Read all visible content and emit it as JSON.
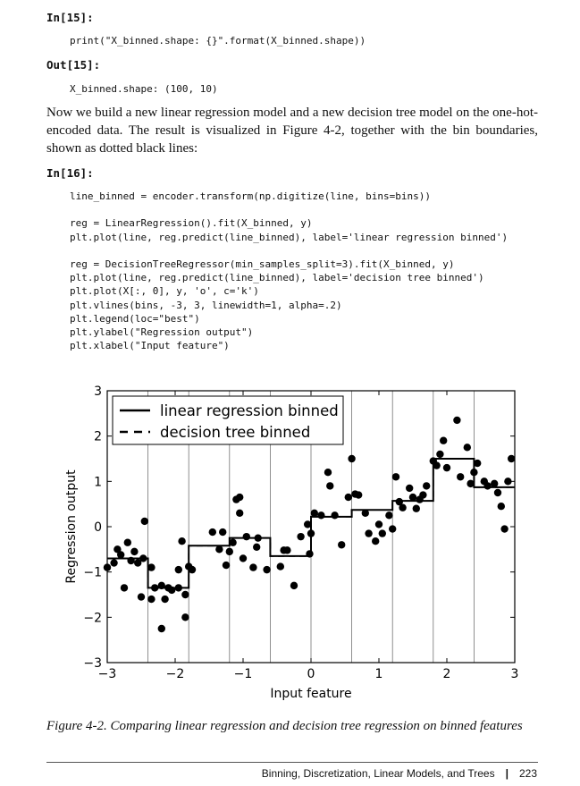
{
  "cells": {
    "in15_prompt": "In[15]:",
    "in15_code": [
      "print(\"X_binned.shape: {}\".format(X_binned.shape))"
    ],
    "out15_prompt": "Out[15]:",
    "out15_text": "X_binned.shape: (100, 10)",
    "paragraph": "Now we build a new linear regression model and a new decision tree model on the one-hot-encoded data. The result is visualized in Figure 4-2, together with the bin boundaries, shown as dotted black lines:",
    "in16_prompt": "In[16]:",
    "in16_code": [
      "line_binned = encoder.transform(np.digitize(line, bins=bins))",
      "",
      "reg = LinearRegression().fit(X_binned, y)",
      "plt.plot(line, reg.predict(line_binned), label='linear regression binned')",
      "",
      "reg = DecisionTreeRegressor(min_samples_split=3).fit(X_binned, y)",
      "plt.plot(line, reg.predict(line_binned), label='decision tree binned')",
      "plt.plot(X[:, 0], y, 'o', c='k')",
      "plt.vlines(bins, -3, 3, linewidth=1, alpha=.2)",
      "plt.legend(loc=\"best\")",
      "plt.ylabel(\"Regression output\")",
      "plt.xlabel(\"Input feature\")"
    ]
  },
  "chart_data": {
    "type": "line",
    "xlabel": "Input feature",
    "ylabel": "Regression output",
    "xlim": [
      -3,
      3
    ],
    "ylim": [
      -3,
      3
    ],
    "x_ticks": [
      -3,
      -2,
      -1,
      0,
      1,
      2,
      3
    ],
    "y_ticks": [
      -3,
      -2,
      -1,
      0,
      1,
      2,
      3
    ],
    "x_tick_labels": [
      "−3",
      "−2",
      "−1",
      "0",
      "1",
      "2",
      "3"
    ],
    "y_tick_labels": [
      "−3",
      "−2",
      "−1",
      "0",
      "1",
      "2",
      "3"
    ],
    "legend_placement": "upper-left",
    "bins": [
      -3,
      -2.4,
      -1.8,
      -1.2,
      -0.6,
      0,
      0.6,
      1.2,
      1.8,
      2.4,
      3
    ],
    "series": [
      {
        "name": "linear regression binned",
        "style": "solid",
        "step_values": [
          -0.7,
          -1.35,
          -0.42,
          -0.25,
          -0.65,
          0.22,
          0.37,
          0.57,
          1.5,
          0.87
        ]
      },
      {
        "name": "decision tree binned",
        "style": "dashed",
        "step_values": [
          -0.7,
          -1.35,
          -0.42,
          -0.25,
          -0.65,
          0.22,
          0.37,
          0.57,
          1.5,
          0.87
        ]
      }
    ],
    "points": [
      [
        -3.0,
        -0.9
      ],
      [
        -2.9,
        -0.8
      ],
      [
        -2.85,
        -0.5
      ],
      [
        -2.8,
        -0.62
      ],
      [
        -2.75,
        -1.35
      ],
      [
        -2.7,
        -0.35
      ],
      [
        -2.65,
        -0.75
      ],
      [
        -2.6,
        -0.55
      ],
      [
        -2.55,
        -0.8
      ],
      [
        -2.45,
        0.12
      ],
      [
        -2.47,
        -0.7
      ],
      [
        -2.5,
        -1.55
      ],
      [
        -2.35,
        -0.9
      ],
      [
        -2.35,
        -1.6
      ],
      [
        -2.3,
        -1.35
      ],
      [
        -2.2,
        -1.3
      ],
      [
        -2.15,
        -1.6
      ],
      [
        -2.1,
        -1.35
      ],
      [
        -2.05,
        -1.4
      ],
      [
        -2.2,
        -2.25
      ],
      [
        -1.95,
        -1.35
      ],
      [
        -1.95,
        -0.95
      ],
      [
        -1.9,
        -0.32
      ],
      [
        -1.85,
        -1.5
      ],
      [
        -1.85,
        -2.0
      ],
      [
        -1.8,
        -0.88
      ],
      [
        -1.75,
        -0.95
      ],
      [
        -1.45,
        -0.12
      ],
      [
        -1.35,
        -0.5
      ],
      [
        -1.3,
        -0.12
      ],
      [
        -1.25,
        -0.85
      ],
      [
        -1.2,
        -0.55
      ],
      [
        -1.15,
        -0.35
      ],
      [
        -1.1,
        0.6
      ],
      [
        -1.05,
        0.65
      ],
      [
        -1.05,
        0.3
      ],
      [
        -1.0,
        -0.7
      ],
      [
        -0.95,
        -0.22
      ],
      [
        -0.85,
        -0.9
      ],
      [
        -0.8,
        -0.45
      ],
      [
        -0.78,
        -0.25
      ],
      [
        -0.65,
        -0.95
      ],
      [
        -0.45,
        -0.88
      ],
      [
        -0.4,
        -0.52
      ],
      [
        -0.35,
        -0.52
      ],
      [
        -0.25,
        -1.3
      ],
      [
        -0.15,
        -0.22
      ],
      [
        -0.05,
        0.05
      ],
      [
        -0.02,
        -0.6
      ],
      [
        0.0,
        -0.15
      ],
      [
        0.05,
        0.3
      ],
      [
        0.15,
        0.25
      ],
      [
        0.25,
        1.2
      ],
      [
        0.28,
        0.9
      ],
      [
        0.35,
        0.25
      ],
      [
        0.45,
        -0.4
      ],
      [
        0.55,
        0.65
      ],
      [
        0.6,
        1.5
      ],
      [
        0.65,
        0.72
      ],
      [
        0.7,
        0.7
      ],
      [
        0.8,
        0.3
      ],
      [
        0.85,
        -0.15
      ],
      [
        0.95,
        -0.32
      ],
      [
        1.0,
        0.05
      ],
      [
        1.05,
        -0.15
      ],
      [
        1.15,
        0.25
      ],
      [
        1.2,
        -0.05
      ],
      [
        1.25,
        1.1
      ],
      [
        1.3,
        0.55
      ],
      [
        1.35,
        0.42
      ],
      [
        1.45,
        0.85
      ],
      [
        1.5,
        0.65
      ],
      [
        1.55,
        0.4
      ],
      [
        1.6,
        0.6
      ],
      [
        1.65,
        0.7
      ],
      [
        1.7,
        0.9
      ],
      [
        1.8,
        1.45
      ],
      [
        1.85,
        1.35
      ],
      [
        1.9,
        1.6
      ],
      [
        1.95,
        1.9
      ],
      [
        2.0,
        1.3
      ],
      [
        2.15,
        2.35
      ],
      [
        2.2,
        1.1
      ],
      [
        2.3,
        1.75
      ],
      [
        2.35,
        0.95
      ],
      [
        2.4,
        1.2
      ],
      [
        2.45,
        1.4
      ],
      [
        2.55,
        1.0
      ],
      [
        2.6,
        0.9
      ],
      [
        2.7,
        0.95
      ],
      [
        2.75,
        0.75
      ],
      [
        2.8,
        0.45
      ],
      [
        2.85,
        -0.05
      ],
      [
        2.9,
        1.0
      ],
      [
        2.95,
        1.5
      ]
    ]
  },
  "caption": "Figure 4-2. Comparing linear regression and decision tree regression on binned features",
  "footer": {
    "running_title": "Binning, Discretization, Linear Models, and Trees",
    "page_number": "223"
  }
}
